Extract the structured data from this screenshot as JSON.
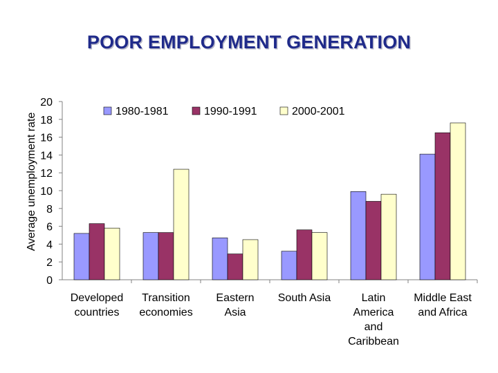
{
  "slide": {
    "title": "POOR EMPLOYMENT GENERATION"
  },
  "chart_data": {
    "type": "bar",
    "title": "",
    "xlabel": "",
    "ylabel": "Average unemployment rate",
    "ylim": [
      0,
      20
    ],
    "yticks": [
      0,
      2,
      4,
      6,
      8,
      10,
      12,
      14,
      16,
      18,
      20
    ],
    "grid": false,
    "legend_position": "top",
    "categories": [
      [
        "Developed",
        "countries"
      ],
      [
        "Transition",
        "economies"
      ],
      [
        "Eastern",
        "Asia"
      ],
      [
        "South  Asia"
      ],
      [
        "Latin",
        "America",
        "and",
        "Caribbean"
      ],
      [
        "Middle East",
        "and Africa"
      ]
    ],
    "series": [
      {
        "name": "1980-1981",
        "color": "#9999ff",
        "values": [
          5.2,
          5.3,
          4.7,
          3.2,
          9.9,
          14.1
        ]
      },
      {
        "name": "1990-1991",
        "color": "#993366",
        "values": [
          6.3,
          5.3,
          2.9,
          5.6,
          8.8,
          16.5
        ]
      },
      {
        "name": "2000-2001",
        "color": "#ffffcc",
        "values": [
          5.8,
          12.4,
          4.5,
          5.3,
          9.6,
          17.6
        ]
      }
    ]
  }
}
